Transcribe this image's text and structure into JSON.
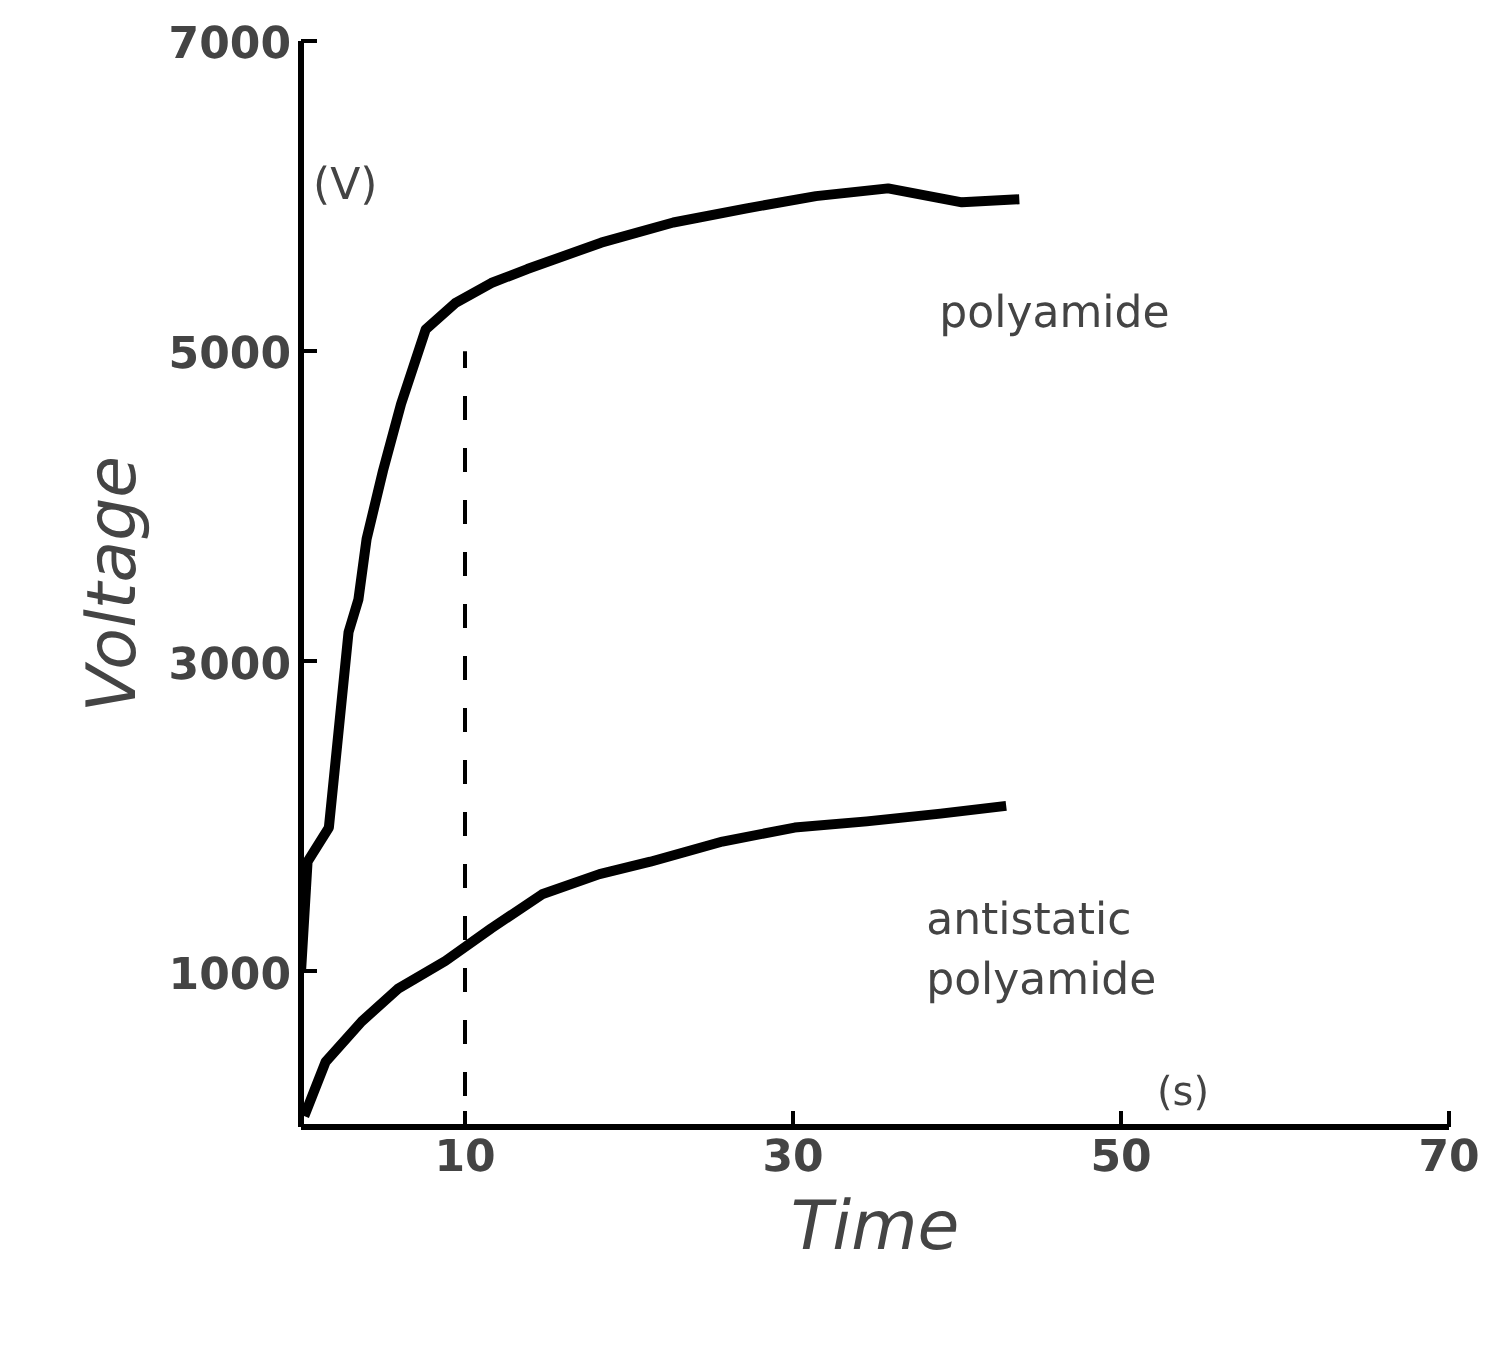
{
  "chart_data": {
    "type": "line",
    "xlabel": "Time",
    "ylabel": "Voltage",
    "annotations": [
      "(V)",
      "(s)"
    ],
    "xlim": [
      0,
      70
    ],
    "ylim": [
      0,
      7000
    ],
    "xticks": [
      10,
      30,
      50,
      70
    ],
    "yticks": [
      1000,
      3000,
      5000,
      7000
    ],
    "grid": false,
    "legend": false,
    "line_style": "solid",
    "series": [
      {
        "name": "polyamide",
        "color": "#000000",
        "x": [
          0,
          0.4,
          1.7,
          2.9,
          3.5,
          4.0,
          5.0,
          6.1,
          7.6,
          9.4,
          11.6,
          13.8,
          18.3,
          22.7,
          27.1,
          31.4,
          35.8,
          40.3,
          43.8
        ],
        "values": [
          1000,
          1710,
          1930,
          3190,
          3400,
          3790,
          4230,
          4660,
          5140,
          5310,
          5440,
          5530,
          5700,
          5830,
          5920,
          6000,
          6050,
          5960,
          5980
        ]
      },
      {
        "name": "antistatic polyamide",
        "color": "#000000",
        "x": [
          0.2,
          1.5,
          3.7,
          5.9,
          8.8,
          11.6,
          14.7,
          18.2,
          21.3,
          25.7,
          30.1,
          34.5,
          39,
          43
        ],
        "values": [
          70,
          420,
          680,
          890,
          1070,
          1280,
          1500,
          1630,
          1710,
          1840,
          1930,
          1970,
          2020,
          2070
        ]
      },
      {
        "color": "#000000",
        "line_style": "dashed",
        "x": [
          10,
          10
        ],
        "values": [
          200,
          5000
        ]
      }
    ]
  }
}
